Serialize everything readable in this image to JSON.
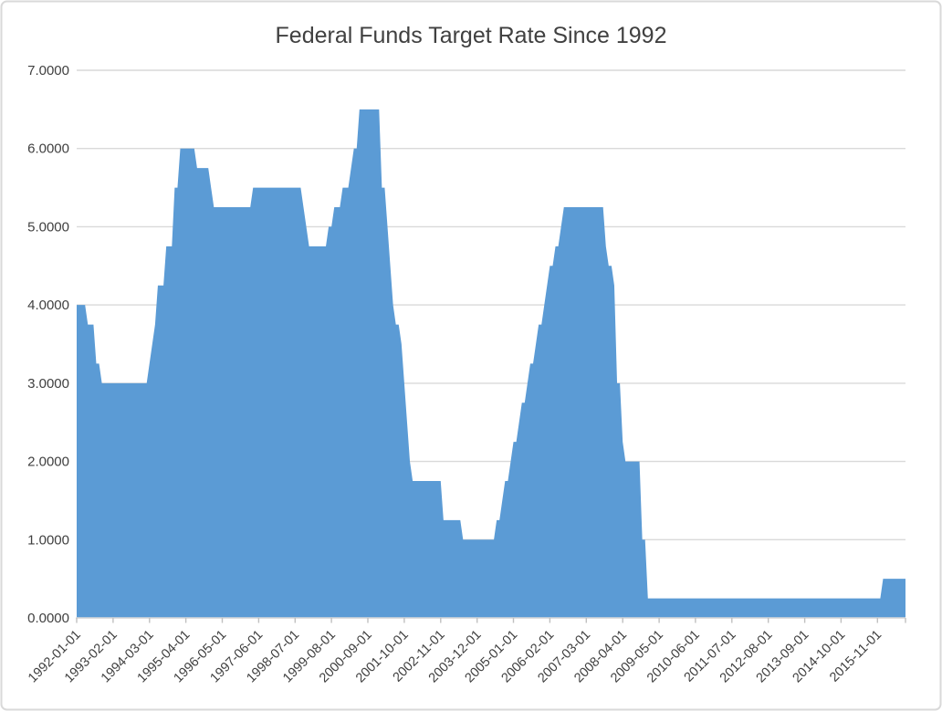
{
  "chart_data": {
    "type": "area",
    "title": "Federal Funds Target Rate Since 1992",
    "xlabel": "",
    "ylabel": "",
    "ylim": [
      0,
      7
    ],
    "y_tick_interval": 1,
    "grid": true,
    "legend": false,
    "y_tick_labels": [
      "0.0000",
      "1.0000",
      "2.0000",
      "3.0000",
      "4.0000",
      "5.0000",
      "6.0000",
      "7.0000"
    ],
    "x_tick_labels": [
      "1992-01-01",
      "1993-02-01",
      "1994-03-01",
      "1995-04-01",
      "1996-05-01",
      "1997-06-01",
      "1998-07-01",
      "1999-08-01",
      "2000-09-01",
      "2001-10-01",
      "2002-11-01",
      "2003-12-01",
      "2005-01-01",
      "2006-02-01",
      "2007-03-01",
      "2008-04-01",
      "2009-05-01",
      "2010-06-01",
      "2011-07-01",
      "2012-08-01",
      "2013-09-01",
      "2014-10-01",
      "2015-11-01"
    ],
    "x_label_interval_months": 13,
    "x_frequency": "monthly",
    "data_start": "1992-01",
    "data_end": "2016-09",
    "segments_note": "Each entry is [month rate takes effect, target rate %]; value holds until next entry",
    "segments": [
      [
        "1992-01",
        4.0
      ],
      [
        "1992-05",
        3.75
      ],
      [
        "1992-08",
        3.25
      ],
      [
        "1992-10",
        3.0
      ],
      [
        "1994-03",
        3.25
      ],
      [
        "1994-04",
        3.5
      ],
      [
        "1994-05",
        3.75
      ],
      [
        "1994-06",
        4.25
      ],
      [
        "1994-09",
        4.75
      ],
      [
        "1994-12",
        5.5
      ],
      [
        "1995-02",
        6.0
      ],
      [
        "1995-08",
        5.75
      ],
      [
        "1996-01",
        5.5
      ],
      [
        "1996-02",
        5.25
      ],
      [
        "1997-04",
        5.5
      ],
      [
        "1998-10",
        5.25
      ],
      [
        "1998-11",
        5.0
      ],
      [
        "1998-12",
        4.75
      ],
      [
        "1999-07",
        5.0
      ],
      [
        "1999-09",
        5.25
      ],
      [
        "1999-12",
        5.5
      ],
      [
        "2000-03",
        5.75
      ],
      [
        "2000-04",
        6.0
      ],
      [
        "2000-06",
        6.5
      ],
      [
        "2001-02",
        5.5
      ],
      [
        "2001-04",
        5.0
      ],
      [
        "2001-05",
        4.5
      ],
      [
        "2001-06",
        4.0
      ],
      [
        "2001-07",
        3.75
      ],
      [
        "2001-09",
        3.5
      ],
      [
        "2001-10",
        3.0
      ],
      [
        "2001-11",
        2.5
      ],
      [
        "2001-12",
        2.0
      ],
      [
        "2002-01",
        1.75
      ],
      [
        "2002-12",
        1.25
      ],
      [
        "2003-07",
        1.0
      ],
      [
        "2004-07",
        1.25
      ],
      [
        "2004-09",
        1.5
      ],
      [
        "2004-10",
        1.75
      ],
      [
        "2004-12",
        2.0
      ],
      [
        "2005-01",
        2.25
      ],
      [
        "2005-03",
        2.5
      ],
      [
        "2005-04",
        2.75
      ],
      [
        "2005-06",
        3.0
      ],
      [
        "2005-07",
        3.25
      ],
      [
        "2005-09",
        3.5
      ],
      [
        "2005-10",
        3.75
      ],
      [
        "2005-12",
        4.0
      ],
      [
        "2006-01",
        4.25
      ],
      [
        "2006-02",
        4.5
      ],
      [
        "2006-04",
        4.75
      ],
      [
        "2006-06",
        5.0
      ],
      [
        "2006-07",
        5.25
      ],
      [
        "2007-10",
        4.75
      ],
      [
        "2007-11",
        4.5
      ],
      [
        "2008-01",
        4.25
      ],
      [
        "2008-02",
        3.0
      ],
      [
        "2008-04",
        2.25
      ],
      [
        "2008-05",
        2.0
      ],
      [
        "2008-11",
        1.0
      ],
      [
        "2009-01",
        0.25
      ],
      [
        "2016-01",
        0.5
      ]
    ],
    "colors": {
      "area_fill": "#5B9BD5",
      "gridline": "#D9D9D9",
      "axis_line": "#D9D9D9",
      "tick": "#C0C0C0",
      "text": "#404040",
      "chart_border": "#D9D9D9",
      "background": "#FFFFFF"
    }
  }
}
